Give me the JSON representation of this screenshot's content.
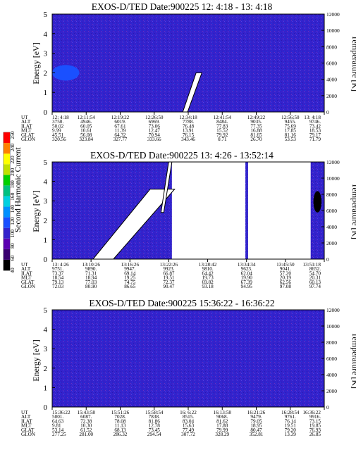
{
  "chart_data": [
    {
      "type": "heatmap",
      "title": "EXOS-D/TED   Date:900225  12: 4:18 - 13: 4:18",
      "ylabel": "Energy [eV]",
      "ylabel_right": "Temperature [K]",
      "ylim": [
        0,
        5
      ],
      "yticks": [
        "0",
        "1",
        "2",
        "3",
        "4",
        "5"
      ],
      "ylim_right": [
        0,
        12000
      ],
      "yticks_right": [
        "0",
        "2000",
        "4000",
        "6000",
        "8000",
        "10000",
        "12000"
      ],
      "background_color": "#3322cc",
      "grid": false,
      "features": [
        {
          "kind": "blob",
          "color": "#1a50ff",
          "x": [
            0.0,
            0.1
          ],
          "y": [
            1.6,
            2.4
          ]
        },
        {
          "kind": "streak",
          "color": "#ffffff",
          "x": [
            0.48,
            0.55
          ],
          "y": [
            0.0,
            2.0
          ]
        }
      ],
      "table": {
        "row_labels": [
          "UT",
          "ALT",
          "ILAT",
          "MLT",
          "GLAT",
          "GLON"
        ],
        "columns": [
          [
            "12: 4:18",
            "3750.",
            "50.02",
            "9.99",
            "45.51",
            "320.56"
          ],
          [
            "12:11:54",
            "4946.",
            "60.05",
            "10.61",
            "56.08",
            "323.84"
          ],
          [
            "12:19:22",
            "6019.",
            "67.61",
            "11.39",
            "64.32",
            "327.77"
          ],
          [
            "12:26:50",
            "6969.",
            "73.06",
            "12.47",
            "70.94",
            "333.66"
          ],
          [
            "12:34:18",
            "7788.",
            "76.48",
            "13.91",
            "76.15",
            "343.46"
          ],
          [
            "12:41:54",
            "8484.",
            "77.83",
            "15.52",
            "79.92",
            "0.71"
          ],
          [
            "12:49:22",
            "9035.",
            "77.35",
            "16.88",
            "81.65",
            "26.70"
          ],
          [
            "12:56:50",
            "9455.",
            "75.69",
            "17.85",
            "81.16",
            "53.53"
          ],
          [
            "13: 4:18",
            "9746.",
            "73.42",
            "18.53",
            "79.17",
            "71.79"
          ]
        ]
      }
    },
    {
      "type": "heatmap",
      "title": "EXOS-D/TED   Date:900225  13: 4:26 - 13:52:14",
      "ylabel": "Energy [eV]",
      "ylabel_right": "Temperature [K]",
      "ylim": [
        0,
        5
      ],
      "yticks": [
        "0",
        "1",
        "2",
        "3",
        "4",
        "5"
      ],
      "ylim_right": [
        0,
        12000
      ],
      "yticks_right": [
        "0",
        "2000",
        "4000",
        "6000",
        "8000",
        "10000",
        "12000"
      ],
      "background_color": "#3322cc",
      "grid": false,
      "features": [
        {
          "kind": "gap",
          "color": "#ffffff",
          "x": [
            0.44,
            0.71
          ],
          "y": [
            0.0,
            5.0
          ]
        },
        {
          "kind": "gap",
          "color": "#ffffff",
          "x": [
            0.72,
            0.95
          ],
          "y": [
            0.0,
            5.0
          ]
        },
        {
          "kind": "streak",
          "color": "#ffffff",
          "x": [
            0.15,
            0.45
          ],
          "y": [
            0.0,
            3.6
          ]
        },
        {
          "kind": "streak",
          "color": "#ffffff",
          "x": [
            0.4,
            0.44
          ],
          "y": [
            2.4,
            5.0
          ]
        },
        {
          "kind": "blob",
          "color": "#000000",
          "x": [
            0.96,
            0.99
          ],
          "y": [
            2.4,
            3.5
          ]
        }
      ],
      "table": {
        "row_labels": [
          "UT",
          "ALT",
          "ILAT",
          "MLT",
          "GLAT",
          "GLON"
        ],
        "columns": [
          [
            "13: 4:26",
            "9751.",
            "73.37",
            "18.54",
            "79.13",
            "72.03"
          ],
          [
            "13:10:26",
            "9890.",
            "71.31",
            "18.94",
            "77.03",
            "80.90"
          ],
          [
            "13:16:26",
            "9947.",
            "69.14",
            "19.25",
            "74.75",
            "86.65"
          ],
          [
            "13:22:26",
            "9923.",
            "66.87",
            "19.51",
            "72.37",
            "90.47"
          ],
          [
            "13:28:42",
            "9810.",
            "64.42",
            "19.73",
            "69.82",
            "93.18"
          ],
          [
            "13:34:34",
            "9623.",
            "62.04",
            "19.90",
            "67.39",
            "94.95"
          ],
          [
            "13:45:50",
            "9041.",
            "57.20",
            "20.19",
            "62.56",
            "97.08"
          ],
          [
            "13:51:18",
            "8652.",
            "54.70",
            "20.31",
            "60.13",
            "97.74"
          ]
        ]
      }
    },
    {
      "type": "heatmap",
      "title": "EXOS-D/TED   Date:900225  15:36:22 - 16:36:22",
      "ylabel": "Energy [eV]",
      "ylabel_right": "Temperature [K]",
      "ylim": [
        0,
        5
      ],
      "yticks": [
        "0",
        "1",
        "2",
        "3",
        "4",
        "5"
      ],
      "ylim_right": [
        0,
        12000
      ],
      "yticks_right": [
        "0",
        "2000",
        "4000",
        "6000",
        "8000",
        "10000",
        "12000"
      ],
      "background_color": "#3322cc",
      "grid": false,
      "features": [],
      "table": {
        "row_labels": [
          "UT",
          "ALT",
          "ILAT",
          "MLT",
          "GLAT",
          "GLON"
        ],
        "columns": [
          [
            "15:36:22",
            "5001.",
            "64.63",
            "9.81",
            "53.14",
            "277.25"
          ],
          [
            "15:43:58",
            "6087.",
            "72.38",
            "10.30",
            "61.52",
            "281.00"
          ],
          [
            "15:51:26",
            "7028.",
            "78.08",
            "11.13",
            "68.13",
            "286.32"
          ],
          [
            "15:58:54",
            "7838.",
            "81.86",
            "12.78",
            "73.45",
            "294.54"
          ],
          [
            "16: 6:22",
            "8515.",
            "83.04",
            "15.63",
            "77.49",
            "307.72"
          ],
          [
            "16:13:58",
            "9068.",
            "81.62",
            "17.88",
            "79.99",
            "328.29"
          ],
          [
            "16:21:26",
            "9479.",
            "79.05",
            "18.95",
            "80.47",
            "352.81"
          ],
          [
            "16:28:54",
            "9761.",
            "76.14",
            "19.51",
            "79.20",
            "13.39"
          ],
          [
            "16:36:22",
            "9916.",
            "73.15",
            "19.85",
            "76.93",
            "26.85"
          ]
        ]
      }
    }
  ],
  "colorbar": {
    "label": "Second Harmonic Current",
    "ticks": [
      "40",
      "60",
      "80",
      "100",
      "120",
      "140",
      "160",
      "180",
      "200",
      "220",
      "240",
      "250"
    ],
    "colors": [
      "#000000",
      "#3a0070",
      "#5a00b0",
      "#3322cc",
      "#1a50ff",
      "#0090ff",
      "#00d0e0",
      "#00c080",
      "#00d000",
      "#c0e000",
      "#ffff00",
      "#ff8000",
      "#ff0000"
    ]
  }
}
